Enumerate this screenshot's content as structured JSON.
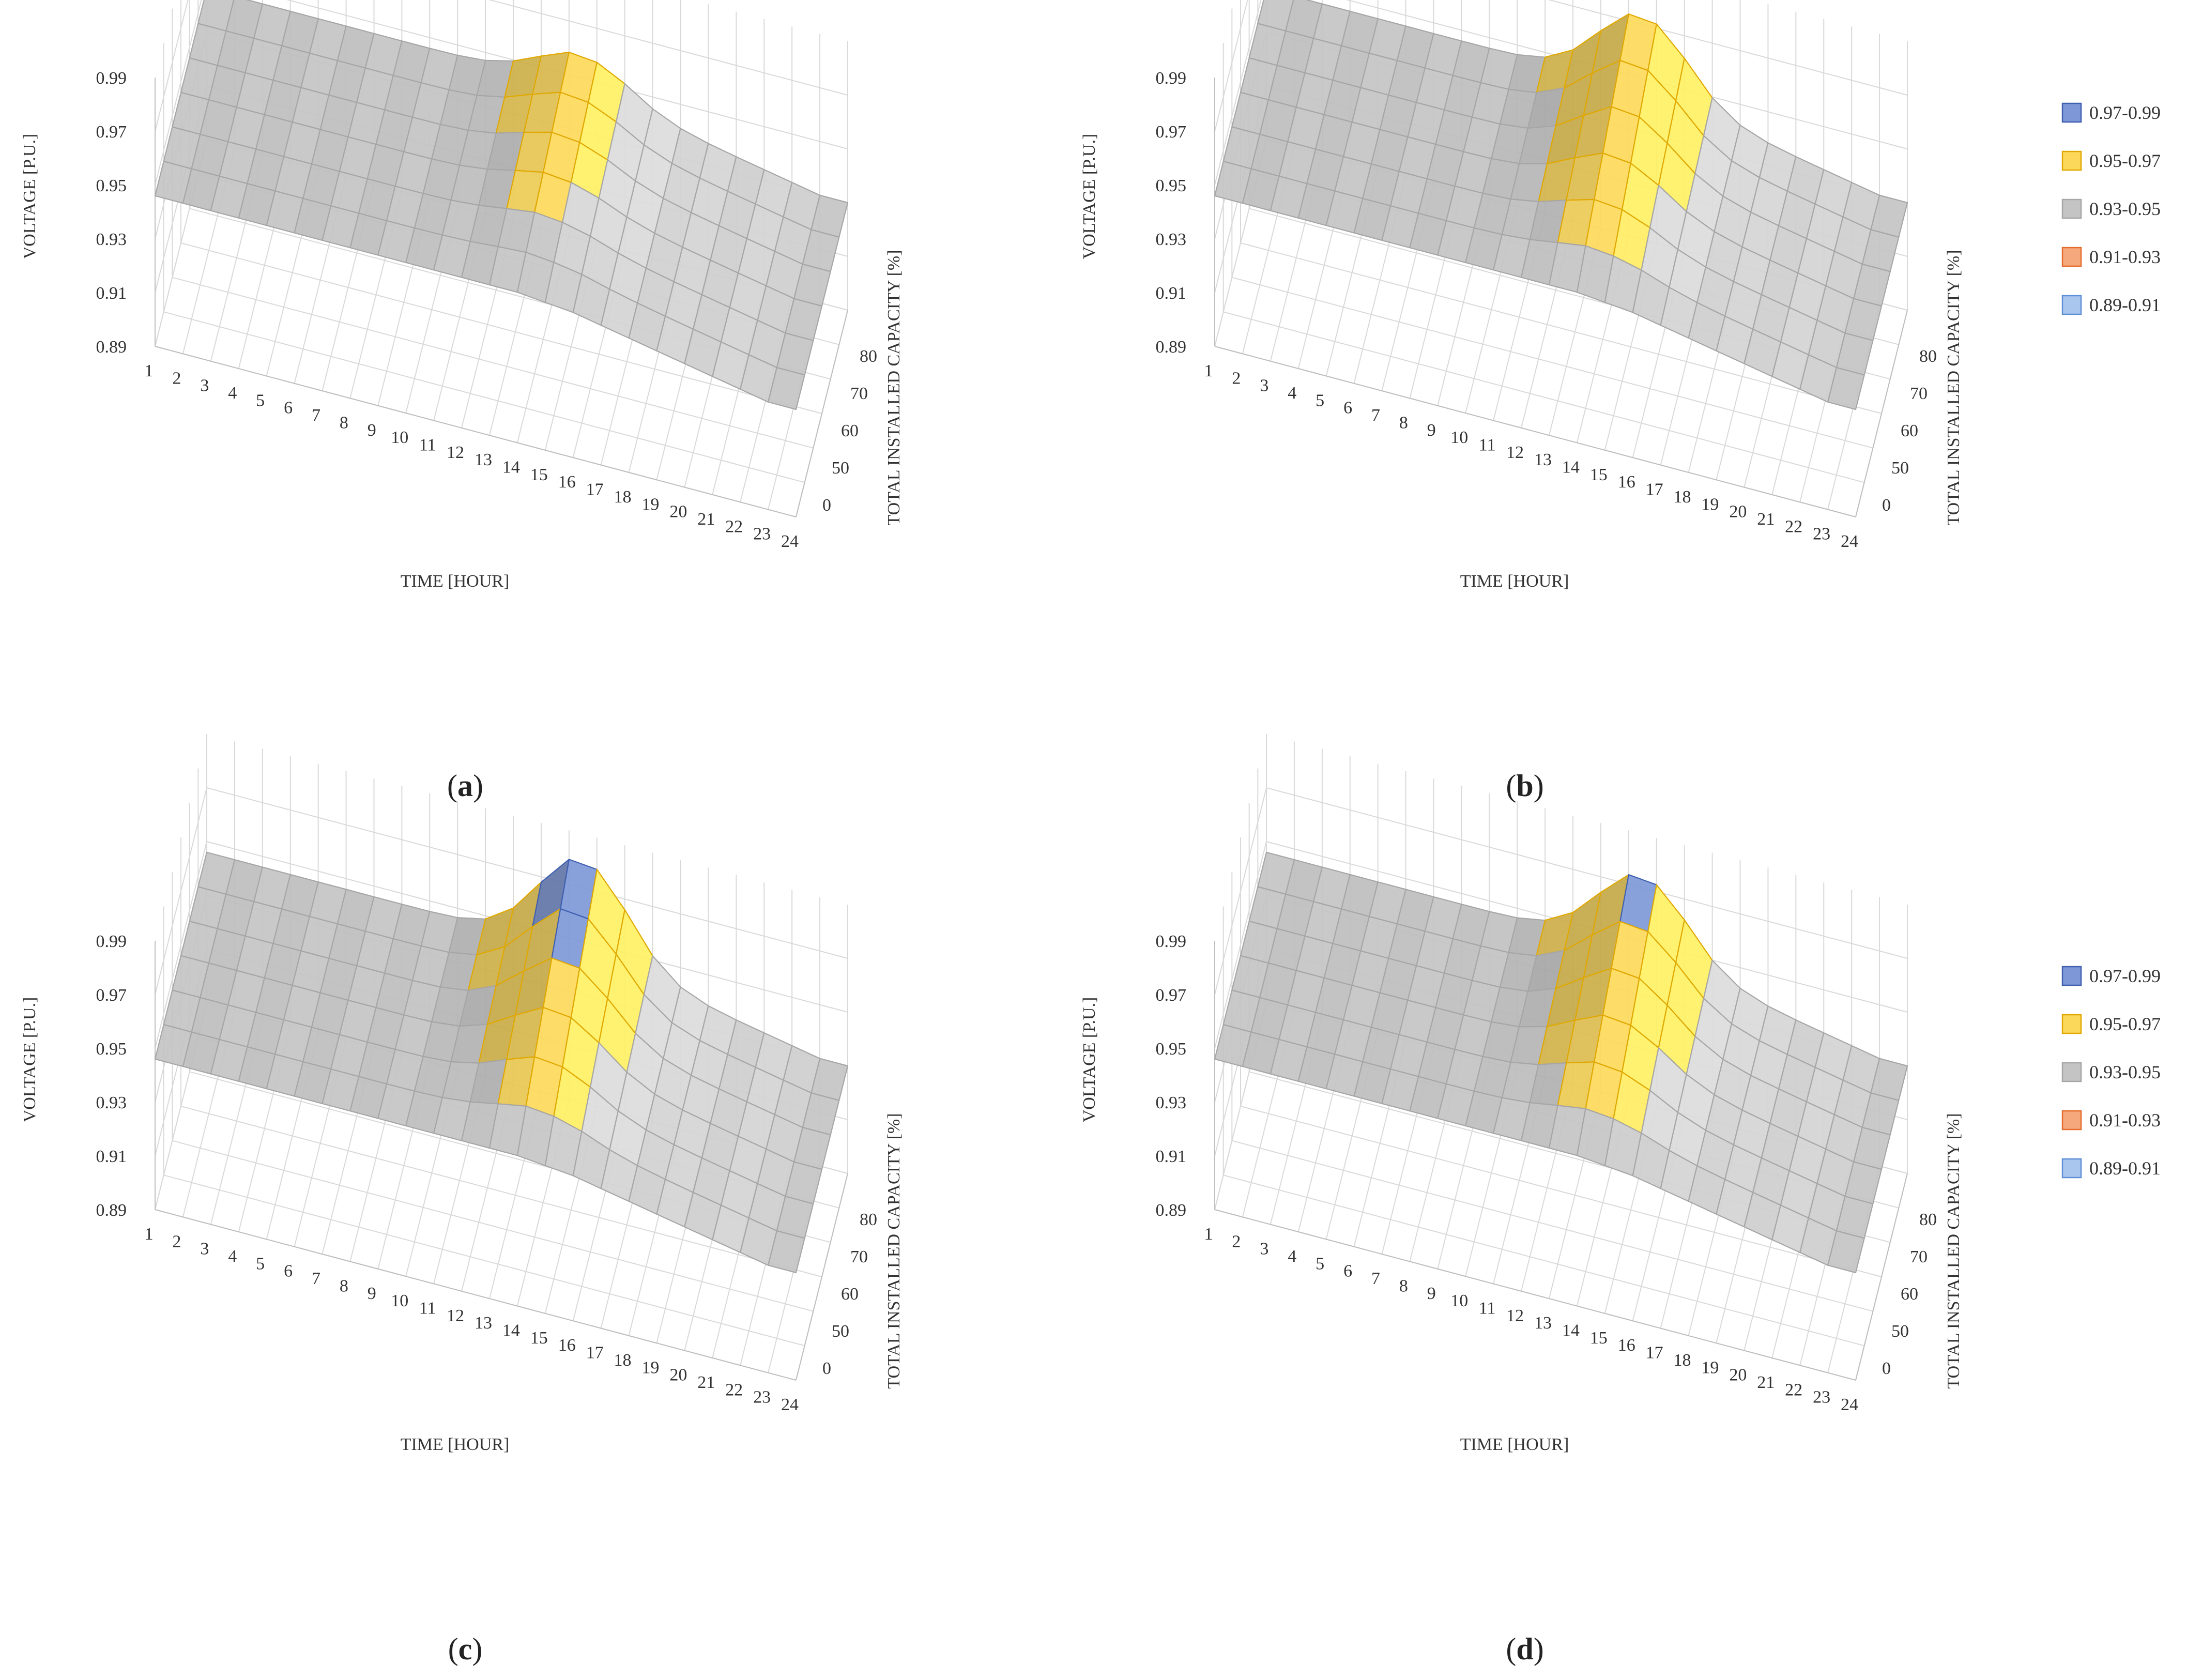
{
  "figure": {
    "y_ticks": [
      "0.99",
      "0.97",
      "0.95",
      "0.93",
      "0.91",
      "0.89"
    ],
    "x_ticks": [
      "1",
      "2",
      "3",
      "4",
      "5",
      "6",
      "7",
      "8",
      "9",
      "10",
      "11",
      "12",
      "13",
      "14",
      "15",
      "16",
      "17",
      "18",
      "19",
      "20",
      "21",
      "22",
      "23",
      "24"
    ],
    "capacity_ticks": [
      "80",
      "70",
      "60",
      "50",
      "0"
    ],
    "y_label": "VOLTAGE [P.U.]",
    "x_label": "TIME [HOUR]",
    "capacity_label": "TOTAL INSTALLED CAPACITY [%]",
    "legend_bands": [
      {
        "label": "0.97-0.99",
        "color": "#7e97d6"
      },
      {
        "label": "0.95-0.97",
        "color": "#fbd75a"
      },
      {
        "label": "0.93-0.95",
        "color": "#c4c4c4"
      },
      {
        "label": "0.91-0.93",
        "color": "#f4a87c"
      },
      {
        "label": "0.89-0.91",
        "color": "#a9c6ee"
      }
    ]
  },
  "chart_data": [
    {
      "type": "surface",
      "panel": "(a)",
      "panel_letter": "a",
      "xlabel": "TIME [HOUR]",
      "ylabel": "VOLTAGE [P.U.]",
      "zlabel": "TOTAL INSTALLED CAPACITY [%]",
      "x": [
        1,
        2,
        3,
        4,
        5,
        6,
        7,
        8,
        9,
        10,
        11,
        12,
        13,
        14,
        15,
        16,
        17,
        18,
        19,
        20,
        21,
        22,
        23,
        24
      ],
      "capacity": [
        0,
        50,
        60,
        70,
        80
      ],
      "ylim": [
        0.89,
        0.99
      ],
      "base_voltage": [
        0.946,
        0.946,
        0.946,
        0.946,
        0.946,
        0.946,
        0.946,
        0.946,
        0.946,
        0.946,
        0.946,
        0.946,
        0.946,
        0.946,
        0.945,
        0.944,
        0.942,
        0.94,
        0.938,
        0.936,
        0.934,
        0.932,
        0.93,
        0.93
      ],
      "pv_peak_at_max_capacity": 0.959
    },
    {
      "type": "surface",
      "panel": "(b)",
      "panel_letter": "b",
      "xlabel": "TIME [HOUR]",
      "ylabel": "VOLTAGE [P.U.]",
      "zlabel": "TOTAL INSTALLED CAPACITY [%]",
      "x": [
        1,
        2,
        3,
        4,
        5,
        6,
        7,
        8,
        9,
        10,
        11,
        12,
        13,
        14,
        15,
        16,
        17,
        18,
        19,
        20,
        21,
        22,
        23,
        24
      ],
      "capacity": [
        0,
        50,
        60,
        70,
        80
      ],
      "ylim": [
        0.89,
        0.99
      ],
      "base_voltage": [
        0.946,
        0.946,
        0.946,
        0.946,
        0.946,
        0.946,
        0.946,
        0.946,
        0.946,
        0.946,
        0.946,
        0.946,
        0.946,
        0.946,
        0.945,
        0.944,
        0.942,
        0.94,
        0.938,
        0.936,
        0.934,
        0.932,
        0.93,
        0.93
      ],
      "pv_peak_at_max_capacity": 0.974
    },
    {
      "type": "surface",
      "panel": "(c)",
      "panel_letter": "c",
      "xlabel": "TIME [HOUR]",
      "ylabel": "VOLTAGE [P.U.]",
      "zlabel": "TOTAL INSTALLED CAPACITY [%]",
      "x": [
        1,
        2,
        3,
        4,
        5,
        6,
        7,
        8,
        9,
        10,
        11,
        12,
        13,
        14,
        15,
        16,
        17,
        18,
        19,
        20,
        21,
        22,
        23,
        24
      ],
      "capacity": [
        0,
        50,
        60,
        70,
        80
      ],
      "ylim": [
        0.89,
        0.99
      ],
      "base_voltage": [
        0.946,
        0.946,
        0.946,
        0.946,
        0.946,
        0.946,
        0.946,
        0.946,
        0.946,
        0.946,
        0.946,
        0.946,
        0.946,
        0.946,
        0.945,
        0.944,
        0.942,
        0.94,
        0.938,
        0.936,
        0.934,
        0.932,
        0.93,
        0.93
      ],
      "pv_peak_at_max_capacity": 0.981
    },
    {
      "type": "surface",
      "panel": "(d)",
      "panel_letter": "d",
      "xlabel": "TIME [HOUR]",
      "ylabel": "VOLTAGE [P.U.]",
      "zlabel": "TOTAL INSTALLED CAPACITY [%]",
      "x": [
        1,
        2,
        3,
        4,
        5,
        6,
        7,
        8,
        9,
        10,
        11,
        12,
        13,
        14,
        15,
        16,
        17,
        18,
        19,
        20,
        21,
        22,
        23,
        24
      ],
      "capacity": [
        0,
        50,
        60,
        70,
        80
      ],
      "ylim": [
        0.89,
        0.99
      ],
      "base_voltage": [
        0.946,
        0.946,
        0.946,
        0.946,
        0.946,
        0.946,
        0.946,
        0.946,
        0.946,
        0.946,
        0.946,
        0.946,
        0.946,
        0.946,
        0.945,
        0.944,
        0.942,
        0.94,
        0.938,
        0.936,
        0.934,
        0.932,
        0.93,
        0.93
      ],
      "pv_peak_at_max_capacity": 0.975
    }
  ]
}
